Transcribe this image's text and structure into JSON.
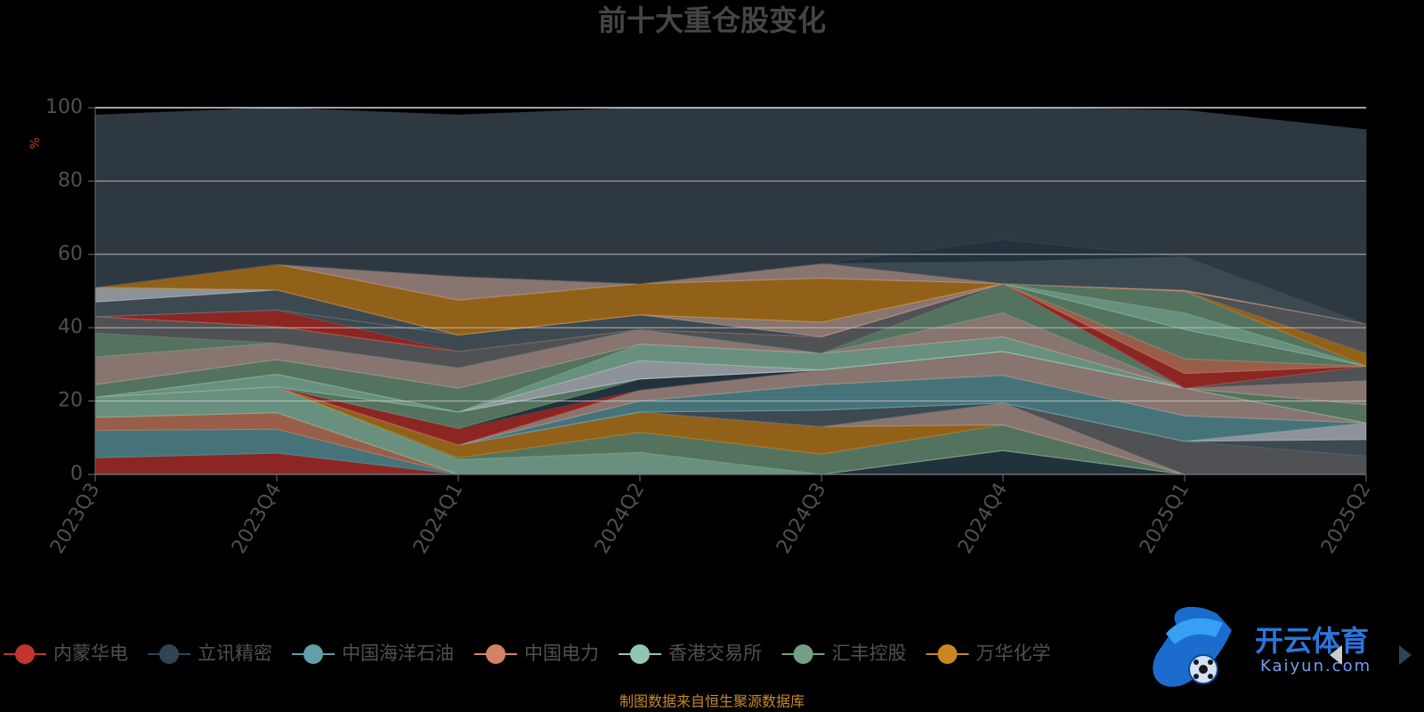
{
  "chart_data": {
    "type": "area",
    "stacked": true,
    "title": "前十大重仓股变化",
    "ylabel": "%",
    "ylim": [
      0,
      100
    ],
    "yticks": [
      0,
      20,
      40,
      60,
      80,
      100
    ],
    "grid": true,
    "categories": [
      "2023Q3",
      "2023Q4",
      "2024Q1",
      "2024Q2",
      "2024Q3",
      "2024Q4",
      "2025Q1",
      "2025Q2"
    ],
    "series": [
      {
        "name": "内蒙华电",
        "color": "#c23531",
        "values": [
          4.5,
          5.8,
          0,
          0,
          0,
          0,
          0,
          0
        ]
      },
      {
        "name": "立讯精密",
        "color": "#2f4554",
        "values": [
          0,
          0,
          0,
          0,
          0,
          6.5,
          0,
          0
        ]
      },
      {
        "name": "中国海洋石油",
        "color": "#61a0a8",
        "values": [
          7.5,
          6.5,
          0,
          0,
          0,
          0,
          0,
          0
        ]
      },
      {
        "name": "中国电力",
        "color": "#d48265",
        "values": [
          3.5,
          4.5,
          0,
          0,
          0,
          0,
          0,
          0
        ]
      },
      {
        "name": "香港交易所",
        "color": "#91c7ae",
        "values": [
          5.5,
          7,
          4,
          6,
          0,
          0,
          0,
          0
        ]
      },
      {
        "name": "汇丰控股",
        "color": "#749f83",
        "values": [
          0,
          0,
          0.5,
          5.5,
          5.5,
          7,
          0,
          0
        ]
      },
      {
        "name": "万华化学",
        "color": "#ca8622",
        "values": [
          0,
          0,
          3.5,
          5.5,
          7.5,
          0,
          0,
          0
        ]
      },
      {
        "name": null,
        "color": "#bda29a",
        "values": [
          0,
          0,
          0,
          0,
          0,
          6,
          0,
          0
        ]
      },
      {
        "name": null,
        "color": "#6e7074",
        "values": [
          0,
          0,
          0,
          0,
          0,
          0,
          9,
          5
        ]
      },
      {
        "name": null,
        "color": "#546570",
        "values": [
          0,
          0,
          0,
          0,
          4.5,
          0,
          0,
          4.5
        ]
      },
      {
        "name": null,
        "color": "#c4ccd3",
        "values": [
          0,
          0,
          0,
          0,
          0,
          0,
          0,
          4.5
        ]
      },
      {
        "name": null,
        "color": "#61a0a8",
        "values": [
          0,
          0,
          0,
          3,
          7,
          7.5,
          7,
          0
        ]
      },
      {
        "name": null,
        "color": "#bda29a",
        "values": [
          0,
          0,
          0,
          3,
          4,
          6.5,
          7.5,
          0
        ]
      },
      {
        "name": null,
        "color": "#c23531",
        "values": [
          0,
          0,
          4.5,
          0,
          0,
          0,
          0,
          0
        ]
      },
      {
        "name": null,
        "color": "#2f4554",
        "values": [
          0,
          0,
          0,
          3,
          0,
          0,
          0,
          0
        ]
      },
      {
        "name": null,
        "color": "#749f83",
        "values": [
          0,
          0,
          4.5,
          0,
          0,
          0,
          0,
          0
        ]
      },
      {
        "name": null,
        "color": "#91c7ae",
        "values": [
          0,
          3.5,
          0,
          0,
          0,
          0,
          0,
          0
        ]
      },
      {
        "name": null,
        "color": "#c4ccd3",
        "values": [
          0,
          0,
          0,
          5,
          0,
          0,
          0,
          0
        ]
      },
      {
        "name": null,
        "color": "#91c7ae",
        "values": [
          0,
          0,
          0,
          4.5,
          4.5,
          4,
          0,
          0
        ]
      },
      {
        "name": null,
        "color": "#749f83",
        "values": [
          3.5,
          4,
          6.5,
          0,
          0,
          0,
          0,
          5
        ]
      },
      {
        "name": null,
        "color": "#bda29a",
        "values": [
          7.5,
          4.5,
          5.5,
          4,
          0,
          6.5,
          0,
          6.5
        ]
      },
      {
        "name": null,
        "color": "#6e7074",
        "values": [
          0,
          0,
          0,
          0,
          0,
          0,
          0,
          4
        ]
      },
      {
        "name": null,
        "color": "#749f83",
        "values": [
          6.5,
          0,
          0,
          0,
          0,
          8,
          0,
          0
        ]
      },
      {
        "name": null,
        "color": "#6e7074",
        "values": [
          4.5,
          4.5,
          4.5,
          0,
          4.5,
          0,
          0,
          0
        ]
      },
      {
        "name": null,
        "color": "#c23531",
        "values": [
          0,
          0,
          0,
          0,
          0,
          0,
          4,
          0
        ]
      },
      {
        "name": null,
        "color": "#d48265",
        "values": [
          0,
          0,
          0,
          0,
          0,
          0,
          4,
          0
        ]
      },
      {
        "name": null,
        "color": "#749f83",
        "values": [
          0,
          0,
          0,
          0,
          0,
          0,
          8,
          0
        ]
      },
      {
        "name": null,
        "color": "#91c7ae",
        "values": [
          0,
          0,
          0,
          0,
          0,
          0,
          4.5,
          0
        ]
      },
      {
        "name": null,
        "color": "#749f83",
        "values": [
          0,
          0,
          0,
          0,
          0,
          0,
          6,
          0
        ]
      },
      {
        "name": null,
        "color": "#ca8622",
        "values": [
          0,
          0,
          0,
          0,
          0,
          0,
          0,
          3.5
        ]
      },
      {
        "name": null,
        "color": "#6e7074",
        "values": [
          0,
          0,
          0,
          0,
          0,
          0,
          0,
          8
        ]
      },
      {
        "name": null,
        "color": "#c23531",
        "values": [
          0,
          4.5,
          0,
          0,
          0,
          0,
          0,
          0
        ]
      },
      {
        "name": null,
        "color": "#546570",
        "values": [
          0,
          0,
          4.5,
          4,
          0,
          0,
          0,
          0
        ]
      },
      {
        "name": null,
        "color": "#bda29a",
        "values": [
          0,
          0,
          0,
          0,
          4,
          0,
          0,
          0
        ]
      },
      {
        "name": null,
        "color": "#546570",
        "values": [
          4,
          5.5,
          0,
          0,
          0,
          0,
          0,
          0
        ]
      },
      {
        "name": null,
        "color": "#c4ccd3",
        "values": [
          4,
          0,
          0,
          0,
          0,
          0,
          0,
          0
        ]
      },
      {
        "name": null,
        "color": "#ca8622",
        "values": [
          0,
          7,
          9.5,
          8.5,
          12,
          0,
          0,
          0
        ]
      },
      {
        "name": null,
        "color": "#bda29a",
        "values": [
          0,
          0,
          6.5,
          0,
          4,
          0,
          0,
          0
        ]
      },
      {
        "name": null,
        "color": "#d48265",
        "values": [
          0,
          0,
          0,
          0,
          0,
          0,
          0.3,
          0
        ]
      },
      {
        "name": null,
        "color": "#546570",
        "values": [
          0,
          0,
          0,
          0,
          0,
          6,
          9,
          0
        ]
      },
      {
        "name": null,
        "color": "#2f4554",
        "values": [
          0,
          0,
          0,
          0,
          0,
          6,
          0,
          0
        ]
      },
      {
        "name": null,
        "color": "#3b4852",
        "values": [
          47,
          43,
          44,
          48.5,
          47,
          40,
          40,
          53
        ]
      }
    ],
    "legend_position": "bottom"
  },
  "legend": {
    "items": [
      "内蒙华电",
      "立讯精密",
      "中国海洋石油",
      "中国电力",
      "香港交易所",
      "汇丰控股",
      "万华化学"
    ],
    "colors": [
      "#c23531",
      "#2f4554",
      "#61a0a8",
      "#d48265",
      "#91c7ae",
      "#749f83",
      "#ca8622"
    ]
  },
  "footer": {
    "source": "制图数据来自恒生聚源数据库"
  },
  "watermark": {
    "text": "开云体育",
    "subtext": "Kaiyun.com"
  },
  "colors": {
    "axis_text": "#505050",
    "ylabel": "#c23531",
    "gridline": "#c8c8c8",
    "source": "#c8892a"
  }
}
